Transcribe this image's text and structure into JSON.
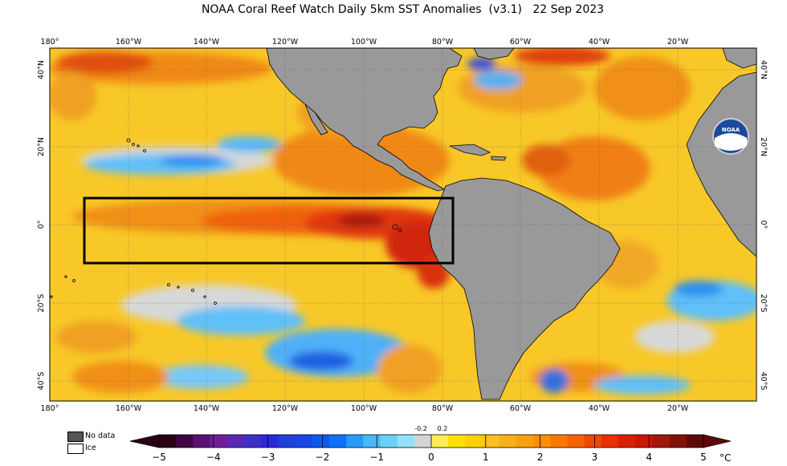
{
  "title": "NOAA Coral Reef Watch Daily 5km SST Anomalies  (v3.1)   22 Sep 2023",
  "longitude_labels": [
    "180°",
    "160°W",
    "140°W",
    "120°W",
    "100°W",
    "80°W",
    "60°W",
    "40°W",
    "20°W"
  ],
  "latitude_labels_left": [
    "40°N",
    "20°N",
    "0°",
    "20°S",
    "40°S"
  ],
  "latitude_labels_right": [
    "40°N",
    "20°N",
    "0°",
    "20°S",
    "40°S"
  ],
  "legend": {
    "no_data": "No data",
    "ice": "Ice",
    "no_data_color": "#555555",
    "ice_color": "#ffffff"
  },
  "colorbar": {
    "unit": "°C",
    "ticks": [
      "−5",
      "−4",
      "−3",
      "−2",
      "−1",
      "0",
      "1",
      "2",
      "3",
      "4",
      "5"
    ],
    "small_ticks": [
      "-0.2",
      "0.2"
    ],
    "colors": [
      "#2a0018",
      "#3f0645",
      "#5a1173",
      "#731c98",
      "#5a28b8",
      "#3d2fc8",
      "#2a2ad8",
      "#1f40d8",
      "#1846e8",
      "#0a5af0",
      "#1070f8",
      "#2a9af8",
      "#48b8f8",
      "#6ad0f8",
      "#90e2f8",
      "#d4d4d4",
      "#ffec50",
      "#ffe000",
      "#ffd000",
      "#ffc020",
      "#f8b018",
      "#f8a010",
      "#f89000",
      "#f87800",
      "#f86000",
      "#f04800",
      "#e83000",
      "#d82000",
      "#c81800",
      "#a01808",
      "#801008",
      "#600808"
    ]
  },
  "colors": {
    "land": "#999999",
    "ocean_base": "#f8c828",
    "warm_anomaly": "#f07a18",
    "hot_anomaly": "#c82808",
    "cool_anomaly": "#48b8f8",
    "cold_anomaly": "#1f40d8",
    "no_data": "#d4d4d4",
    "box_outline": "#000000"
  },
  "annotations": {
    "noaa_logo_text": "NOAA"
  }
}
